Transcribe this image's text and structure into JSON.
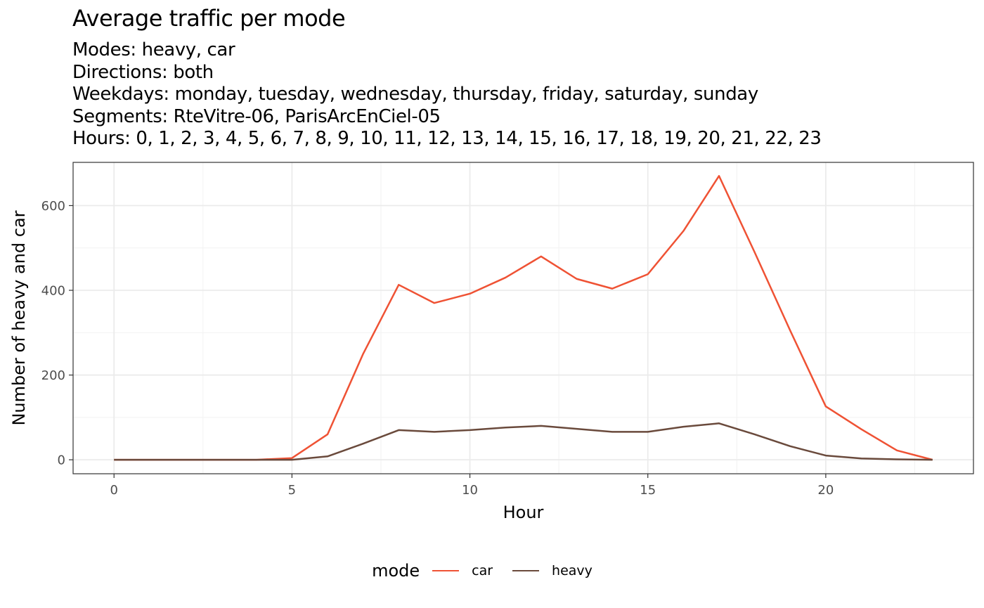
{
  "chart_data": {
    "type": "line",
    "title": "Average traffic per mode",
    "subtitle_lines": [
      "Modes: heavy, car",
      "Directions: both",
      "Weekdays: monday, tuesday, wednesday, thursday, friday, saturday, sunday",
      "Segments: RteVitre-06, ParisArcEnCiel-05",
      "Hours: 0, 1, 2, 3, 4, 5, 6, 7, 8, 9, 10, 11, 12, 13, 14, 15, 16, 17, 18, 19, 20, 21, 22, 23"
    ],
    "xlabel": "Hour",
    "ylabel": "Number of heavy and car",
    "x": [
      0,
      1,
      2,
      3,
      4,
      5,
      6,
      7,
      8,
      9,
      10,
      11,
      12,
      13,
      14,
      15,
      16,
      17,
      18,
      19,
      20,
      21,
      22,
      23
    ],
    "series": [
      {
        "name": "car",
        "color": "#ef5234",
        "values": [
          0,
          0,
          0,
          0,
          0,
          4,
          60,
          250,
          413,
          370,
          392,
          430,
          480,
          427,
          404,
          438,
          540,
          670,
          490,
          305,
          126,
          72,
          22,
          0
        ]
      },
      {
        "name": "heavy",
        "color": "#6a4a3c",
        "values": [
          0,
          0,
          0,
          0,
          0,
          0,
          8,
          38,
          70,
          66,
          70,
          76,
          80,
          73,
          66,
          66,
          78,
          86,
          60,
          32,
          10,
          3,
          1,
          0
        ]
      }
    ],
    "xlim": [
      -1.15,
      24.15
    ],
    "ylim": [
      -33,
      702
    ],
    "x_ticks": [
      0,
      5,
      10,
      15,
      20
    ],
    "x_minor_ticks": [
      2.5,
      7.5,
      12.5,
      17.5,
      22.5
    ],
    "y_ticks": [
      0,
      200,
      400,
      600
    ],
    "y_minor_ticks": [
      100,
      300,
      500
    ],
    "grid": true,
    "legend": {
      "title": "mode",
      "position": "bottom"
    }
  }
}
